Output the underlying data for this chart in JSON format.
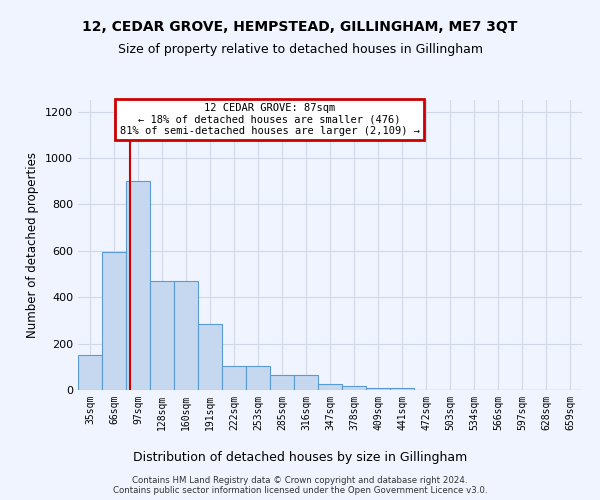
{
  "title": "12, CEDAR GROVE, HEMPSTEAD, GILLINGHAM, ME7 3QT",
  "subtitle": "Size of property relative to detached houses in Gillingham",
  "xlabel": "Distribution of detached houses by size in Gillingham",
  "ylabel": "Number of detached properties",
  "footer_line1": "Contains HM Land Registry data © Crown copyright and database right 2024.",
  "footer_line2": "Contains public sector information licensed under the Open Government Licence v3.0.",
  "bin_labels": [
    "35sqm",
    "66sqm",
    "97sqm",
    "128sqm",
    "160sqm",
    "191sqm",
    "222sqm",
    "253sqm",
    "285sqm",
    "316sqm",
    "347sqm",
    "378sqm",
    "409sqm",
    "441sqm",
    "472sqm",
    "503sqm",
    "534sqm",
    "566sqm",
    "597sqm",
    "628sqm",
    "659sqm"
  ],
  "bar_values": [
    150,
    595,
    900,
    470,
    470,
    285,
    105,
    105,
    63,
    63,
    27,
    18,
    10,
    10,
    0,
    0,
    0,
    0,
    0,
    0,
    0
  ],
  "bar_color": "#c5d8f0",
  "bar_edge_color": "#5b9bd5",
  "grid_color": "#d0d8e8",
  "ylim": [
    0,
    1250
  ],
  "yticks": [
    0,
    200,
    400,
    600,
    800,
    1000,
    1200
  ],
  "annotation_box_text": "12 CEDAR GROVE: 87sqm\n← 18% of detached houses are smaller (476)\n81% of semi-detached houses are larger (2,109) →",
  "annotation_box_color": "#cc0000",
  "background_color": "#f0f4ff",
  "title_fontsize": 10,
  "subtitle_fontsize": 9
}
